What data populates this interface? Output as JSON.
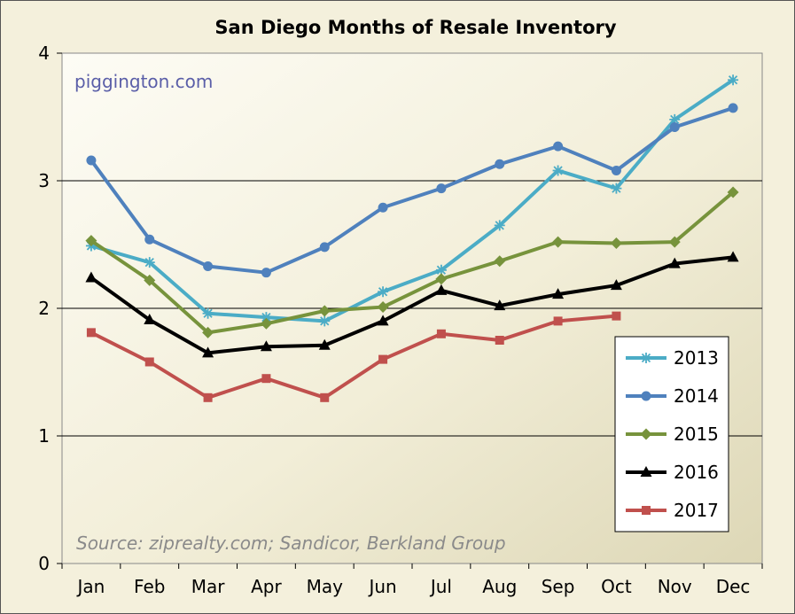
{
  "chart_data": {
    "type": "line",
    "title": "San Diego Months of Resale Inventory",
    "watermark": "piggington.com",
    "source_note": "Source: ziprealty.com; Sandicor, Berkland Group",
    "categories": [
      "Jan",
      "Feb",
      "Mar",
      "Apr",
      "May",
      "Jun",
      "Jul",
      "Aug",
      "Sep",
      "Oct",
      "Nov",
      "Dec"
    ],
    "ylim": [
      0,
      4
    ],
    "yticks": [
      "0",
      "1",
      "2",
      "3",
      "4"
    ],
    "grid": "horizontal",
    "legend_position": "bottom-right",
    "series": [
      {
        "name": "2013",
        "color": "#4bacc6",
        "marker": "star",
        "values": [
          2.49,
          2.36,
          1.96,
          1.93,
          1.9,
          2.13,
          2.3,
          2.65,
          3.08,
          2.94,
          3.48,
          3.79
        ]
      },
      {
        "name": "2014",
        "color": "#4f81bd",
        "marker": "circle",
        "values": [
          3.16,
          2.54,
          2.33,
          2.28,
          2.48,
          2.79,
          2.94,
          3.13,
          3.27,
          3.08,
          3.42,
          3.57
        ]
      },
      {
        "name": "2015",
        "color": "#77933c",
        "marker": "diamond",
        "values": [
          2.53,
          2.22,
          1.81,
          1.88,
          1.98,
          2.01,
          2.23,
          2.37,
          2.52,
          2.51,
          2.52,
          2.91
        ]
      },
      {
        "name": "2016",
        "color": "#000000",
        "marker": "triangle",
        "values": [
          2.24,
          1.91,
          1.65,
          1.7,
          1.71,
          1.9,
          2.14,
          2.02,
          2.11,
          2.18,
          2.35,
          2.4
        ]
      },
      {
        "name": "2017",
        "color": "#c0504d",
        "marker": "square",
        "values": [
          1.81,
          1.58,
          1.3,
          1.45,
          1.3,
          1.6,
          1.8,
          1.75,
          1.9,
          1.94,
          null,
          null
        ]
      }
    ]
  }
}
